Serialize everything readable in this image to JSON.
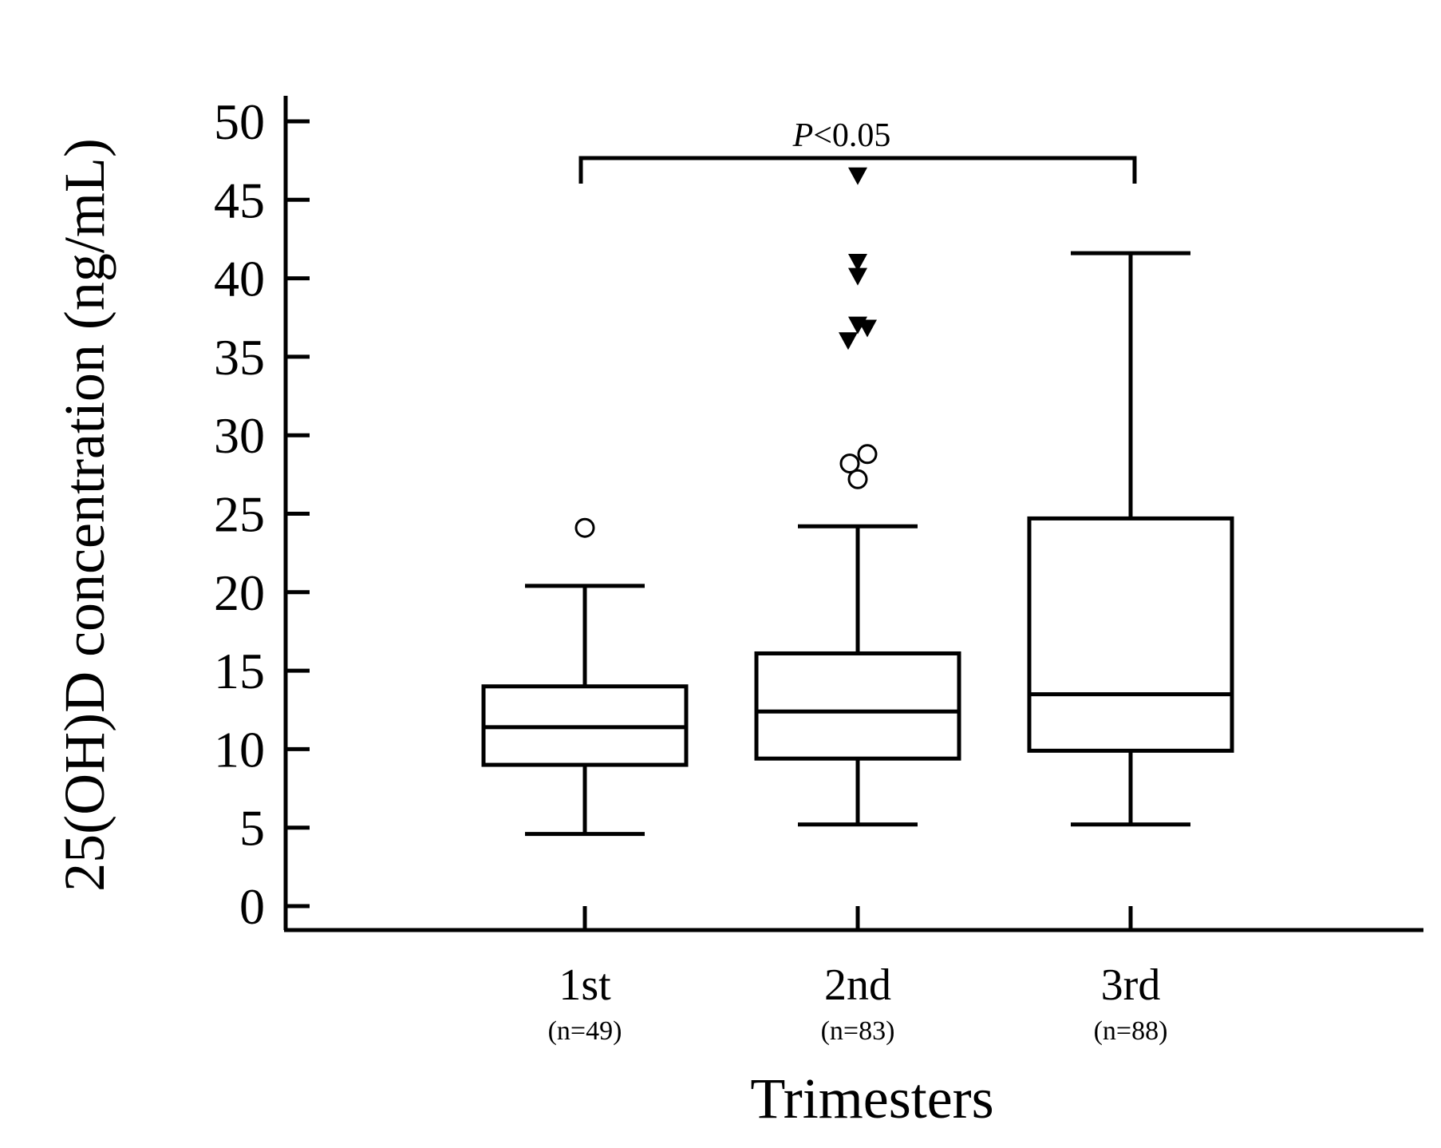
{
  "chart_data": {
    "type": "box",
    "ylabel": "25(OH)D concentration (ng/mL)",
    "xlabel": "Trimesters",
    "ylim": [
      0,
      50
    ],
    "yticks": [
      0,
      5,
      10,
      15,
      20,
      25,
      30,
      35,
      40,
      45,
      50
    ],
    "grid": false,
    "categories": [
      "1st",
      "2nd",
      "3rd"
    ],
    "sample_sizes": [
      "(n=49)",
      "(n=83)",
      "(n=88)"
    ],
    "boxes": [
      {
        "category": "1st",
        "min": 4.6,
        "q1": 9.0,
        "median": 11.4,
        "q3": 14.0,
        "max": 20.4,
        "outliers_circle": [
          24.1
        ],
        "outliers_triangle": []
      },
      {
        "category": "2nd",
        "min": 5.2,
        "q1": 9.4,
        "median": 12.4,
        "q3": 16.1,
        "max": 24.2,
        "outliers_circle": [
          27.2,
          28.2,
          28.8
        ],
        "outliers_triangle": [
          36.0,
          36.8,
          37.0,
          40.1,
          41.0,
          46.5
        ]
      },
      {
        "category": "3rd",
        "min": 5.2,
        "q1": 9.9,
        "median": 13.5,
        "q3": 24.7,
        "max": 41.6,
        "outliers_circle": [],
        "outliers_triangle": []
      }
    ],
    "annotation": {
      "text_italic": "P",
      "text": "<0.05",
      "from": "1st",
      "to": "3rd"
    }
  }
}
